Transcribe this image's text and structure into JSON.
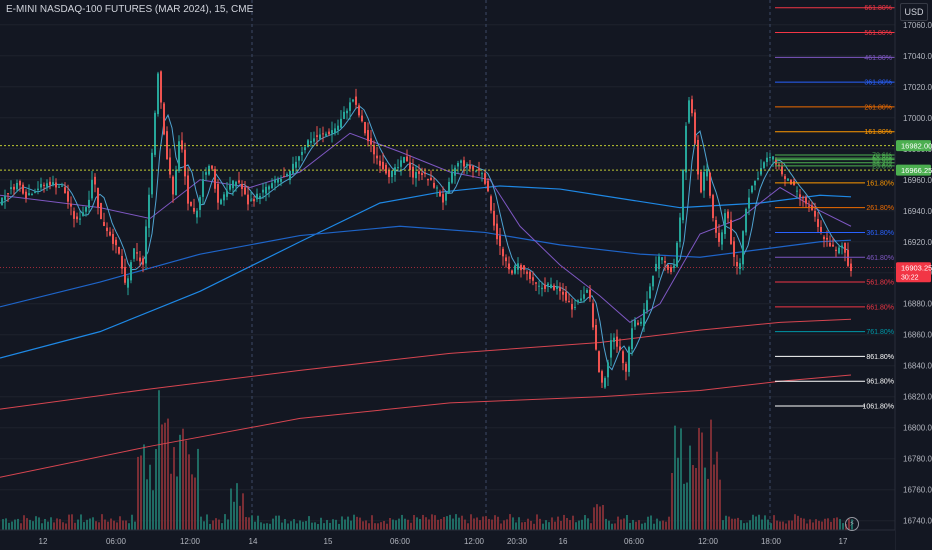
{
  "header": {
    "title": "E-MINI NASDAQ-100 FUTURES (MAR 2024), 15, CME",
    "currency": "USD"
  },
  "chart_data": {
    "type": "candlestick",
    "ylim": [
      16734,
      17076
    ],
    "y_ticks": [
      16740,
      16760,
      16780,
      16800,
      16820,
      16840,
      16860,
      16880,
      16900,
      16920,
      16940,
      16960,
      16980,
      17000,
      17020,
      17040,
      17060
    ],
    "x_ticks": [
      "12",
      "06:00",
      "12:00",
      "14",
      "15",
      "06:00",
      "12:00",
      "20:30",
      "16",
      "06:00",
      "12:00",
      "18:00",
      "17"
    ],
    "price_tags": [
      {
        "value": 16982.0,
        "label": "16982.00",
        "color": "#4caf50"
      },
      {
        "value": 16966.25,
        "label": "16966.25",
        "color": "#4caf50"
      },
      {
        "value": 16903.25,
        "label": "16903.25",
        "sub": "30:22",
        "color": "#f23645"
      }
    ],
    "hlines": [
      16982.0,
      16966.25
    ],
    "fib_upper": [
      {
        "label": "661.80%",
        "value": 17071,
        "color": "#f23645"
      },
      {
        "label": "561.80%",
        "value": 17055,
        "color": "#f23645"
      },
      {
        "label": "461.80%",
        "value": 17039,
        "color": "#7e57c2"
      },
      {
        "label": "361.80%",
        "value": 17023,
        "color": "#2962ff"
      },
      {
        "label": "261.80%",
        "value": 17007,
        "color": "#ef6c00"
      },
      {
        "label": "161.80%",
        "value": 16991,
        "color": "#ff9800"
      },
      {
        "label": "78.6%",
        "value": 16976,
        "color": "#4caf50"
      },
      {
        "label": "61.8%",
        "value": 16974,
        "color": "#4caf50"
      },
      {
        "label": "50.0%",
        "value": 16973,
        "color": "#4caf50"
      },
      {
        "label": "38.2%",
        "value": 16971,
        "color": "#4caf50"
      },
      {
        "label": "23.6%",
        "value": 16969,
        "color": "#4caf50"
      }
    ],
    "fib_lower": [
      {
        "label": "161.80%",
        "value": 16958,
        "color": "#ff9800"
      },
      {
        "label": "261.80%",
        "value": 16942,
        "color": "#ef6c00"
      },
      {
        "label": "361.80%",
        "value": 16926,
        "color": "#2962ff"
      },
      {
        "label": "461.80%",
        "value": 16910,
        "color": "#7e57c2"
      },
      {
        "label": "561.80%",
        "value": 16894,
        "color": "#f23645"
      },
      {
        "label": "661.80%",
        "value": 16878,
        "color": "#f23645"
      },
      {
        "label": "761.80%",
        "value": 16862,
        "color": "#0097a7"
      },
      {
        "label": "861.80%",
        "value": 16846,
        "color": "#ffffff"
      },
      {
        "label": "961.80%",
        "value": 16830,
        "color": "#ffffff"
      },
      {
        "label": "1061.80%",
        "value": 16814,
        "color": "#ffffff"
      }
    ],
    "price_path": [
      [
        0,
        16945
      ],
      [
        10,
        16952
      ],
      [
        20,
        16958
      ],
      [
        28,
        16950
      ],
      [
        40,
        16955
      ],
      [
        52,
        16958
      ],
      [
        65,
        16955
      ],
      [
        78,
        16932
      ],
      [
        90,
        16945
      ],
      [
        95,
        16965
      ],
      [
        102,
        16935
      ],
      [
        112,
        16925
      ],
      [
        122,
        16910
      ],
      [
        128,
        16888
      ],
      [
        135,
        16915
      ],
      [
        145,
        16905
      ],
      [
        152,
        16960
      ],
      [
        160,
        17030
      ],
      [
        168,
        16978
      ],
      [
        175,
        16950
      ],
      [
        182,
        16990
      ],
      [
        190,
        16945
      ],
      [
        198,
        16935
      ],
      [
        205,
        16962
      ],
      [
        213,
        16970
      ],
      [
        220,
        16945
      ],
      [
        230,
        16955
      ],
      [
        240,
        16960
      ],
      [
        250,
        16945
      ],
      [
        260,
        16950
      ],
      [
        270,
        16955
      ],
      [
        280,
        16960
      ],
      [
        290,
        16962
      ],
      [
        300,
        16975
      ],
      [
        310,
        16985
      ],
      [
        320,
        16988
      ],
      [
        330,
        16990
      ],
      [
        340,
        16995
      ],
      [
        348,
        17005
      ],
      [
        355,
        17012
      ],
      [
        362,
        17000
      ],
      [
        370,
        16985
      ],
      [
        378,
        16975
      ],
      [
        385,
        16968
      ],
      [
        392,
        16963
      ],
      [
        400,
        16968
      ],
      [
        408,
        16975
      ],
      [
        415,
        16962
      ],
      [
        422,
        16966
      ],
      [
        430,
        16960
      ],
      [
        438,
        16955
      ],
      [
        446,
        16945
      ],
      [
        455,
        16966
      ],
      [
        462,
        16972
      ],
      [
        470,
        16968
      ],
      [
        478,
        16966
      ],
      [
        485,
        16965
      ],
      [
        492,
        16945
      ],
      [
        498,
        16925
      ],
      [
        505,
        16910
      ],
      [
        512,
        16900
      ],
      [
        520,
        16905
      ],
      [
        528,
        16900
      ],
      [
        535,
        16893
      ],
      [
        542,
        16890
      ],
      [
        550,
        16892
      ],
      [
        558,
        16890
      ],
      [
        566,
        16885
      ],
      [
        574,
        16878
      ],
      [
        582,
        16883
      ],
      [
        590,
        16892
      ],
      [
        598,
        16850
      ],
      [
        603,
        16825
      ],
      [
        608,
        16836
      ],
      [
        615,
        16862
      ],
      [
        622,
        16848
      ],
      [
        628,
        16838
      ],
      [
        635,
        16870
      ],
      [
        642,
        16865
      ],
      [
        648,
        16880
      ],
      [
        655,
        16900
      ],
      [
        662,
        16910
      ],
      [
        668,
        16905
      ],
      [
        675,
        16900
      ],
      [
        682,
        16935
      ],
      [
        688,
        16995
      ],
      [
        692,
        17015
      ],
      [
        697,
        16985
      ],
      [
        702,
        16950
      ],
      [
        708,
        16970
      ],
      [
        715,
        16935
      ],
      [
        722,
        16915
      ],
      [
        728,
        16945
      ],
      [
        735,
        16910
      ],
      [
        741,
        16900
      ],
      [
        747,
        16940
      ],
      [
        753,
        16955
      ],
      [
        758,
        16960
      ],
      [
        765,
        16970
      ],
      [
        772,
        16975
      ],
      [
        780,
        16970
      ],
      [
        787,
        16960
      ],
      [
        793,
        16958
      ],
      [
        800,
        16950
      ],
      [
        808,
        16945
      ],
      [
        815,
        16938
      ],
      [
        822,
        16926
      ],
      [
        830,
        16920
      ],
      [
        838,
        16913
      ],
      [
        845,
        16918
      ],
      [
        851,
        16903
      ]
    ],
    "ma_blue_long": [
      [
        0,
        16878
      ],
      [
        100,
        16894
      ],
      [
        200,
        16912
      ],
      [
        300,
        16924
      ],
      [
        400,
        16930
      ],
      [
        485,
        16926
      ],
      [
        560,
        16918
      ],
      [
        640,
        16912
      ],
      [
        700,
        16910
      ],
      [
        760,
        16915
      ],
      [
        820,
        16920
      ],
      [
        851,
        16921
      ]
    ],
    "ma_blue_mid": [
      [
        0,
        16845
      ],
      [
        100,
        16862
      ],
      [
        200,
        16888
      ],
      [
        300,
        16920
      ],
      [
        380,
        16945
      ],
      [
        440,
        16952
      ],
      [
        500,
        16956
      ],
      [
        560,
        16954
      ],
      [
        620,
        16948
      ],
      [
        680,
        16942
      ],
      [
        760,
        16945
      ],
      [
        820,
        16950
      ],
      [
        851,
        16949
      ]
    ],
    "ma_red_200": [
      [
        0,
        16812
      ],
      [
        150,
        16825
      ],
      [
        300,
        16837
      ],
      [
        450,
        16848
      ],
      [
        600,
        16855
      ],
      [
        700,
        16863
      ],
      [
        780,
        16868
      ],
      [
        851,
        16870
      ]
    ],
    "ma_red_long": [
      [
        0,
        16768
      ],
      [
        150,
        16788
      ],
      [
        300,
        16806
      ],
      [
        450,
        16816
      ],
      [
        600,
        16820
      ],
      [
        700,
        16824
      ],
      [
        780,
        16830
      ],
      [
        851,
        16834
      ]
    ],
    "ma_purple": [
      [
        0,
        16950
      ],
      [
        100,
        16942
      ],
      [
        150,
        16935
      ],
      [
        200,
        16960
      ],
      [
        250,
        16955
      ],
      [
        300,
        16965
      ],
      [
        350,
        16990
      ],
      [
        400,
        16978
      ],
      [
        450,
        16965
      ],
      [
        490,
        16960
      ],
      [
        520,
        16930
      ],
      [
        560,
        16905
      ],
      [
        600,
        16885
      ],
      [
        630,
        16868
      ],
      [
        660,
        16880
      ],
      [
        700,
        16925
      ],
      [
        740,
        16935
      ],
      [
        780,
        16955
      ],
      [
        820,
        16940
      ],
      [
        851,
        16930
      ]
    ]
  }
}
